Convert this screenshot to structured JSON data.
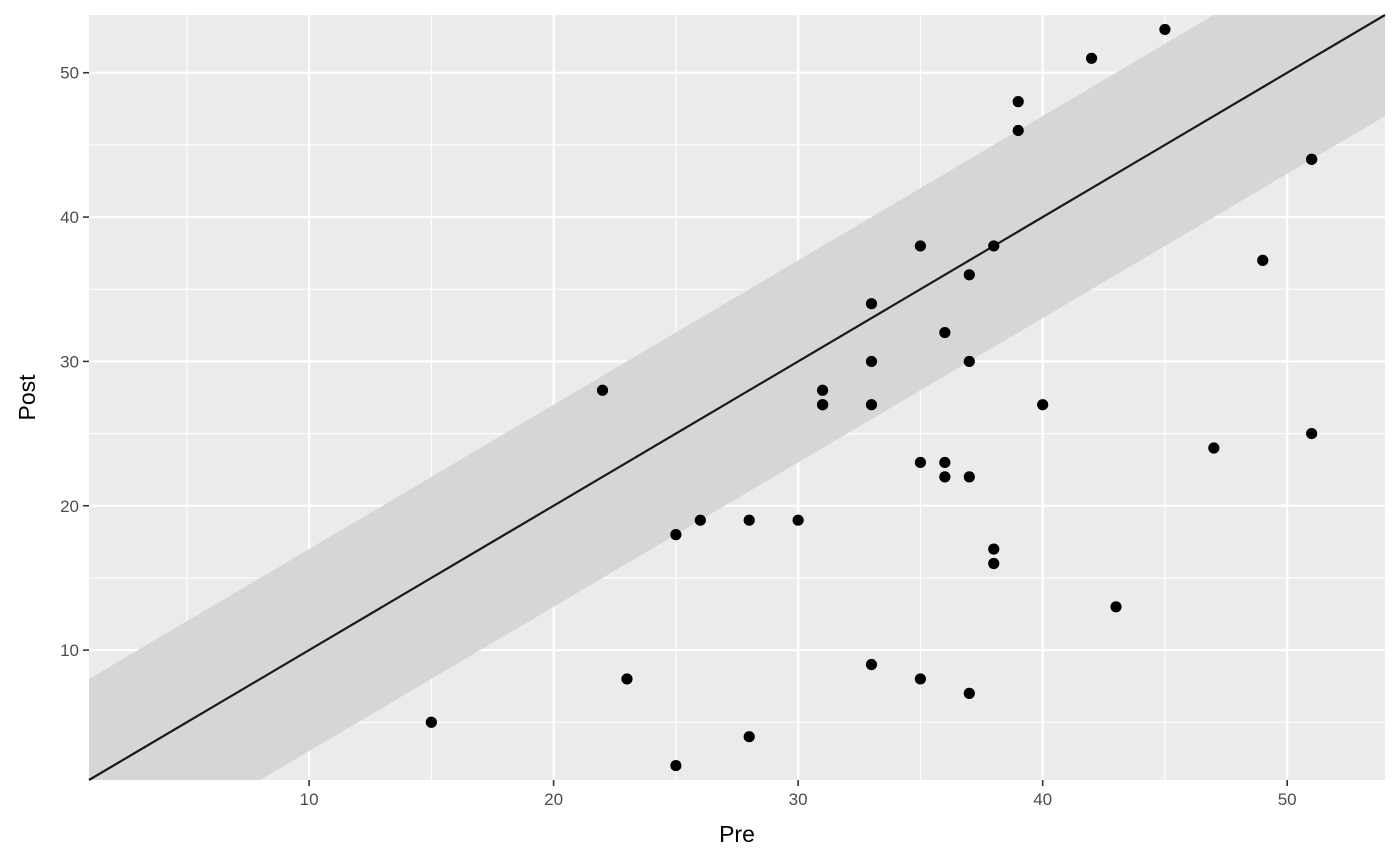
{
  "chart_data": {
    "type": "scatter",
    "title": "",
    "xlabel": "Pre",
    "ylabel": "Post",
    "xlim": [
      1,
      54
    ],
    "ylim": [
      1,
      54
    ],
    "x_ticks": [
      10,
      20,
      30,
      40,
      50
    ],
    "y_ticks": [
      10,
      20,
      30,
      40,
      50
    ],
    "x_minor_ticks": [
      5,
      15,
      25,
      35,
      45
    ],
    "y_minor_ticks": [
      5,
      15,
      25,
      35,
      45
    ],
    "grid": true,
    "reference_line": {
      "type": "identity",
      "slope": 1,
      "intercept": 0
    },
    "band": {
      "lower_offset": -7,
      "upper_offset": 7
    },
    "points": [
      {
        "x": 15,
        "y": 5
      },
      {
        "x": 22,
        "y": 28
      },
      {
        "x": 23,
        "y": 8
      },
      {
        "x": 25,
        "y": 18
      },
      {
        "x": 25,
        "y": 2
      },
      {
        "x": 26,
        "y": 19
      },
      {
        "x": 28,
        "y": 19
      },
      {
        "x": 28,
        "y": 4
      },
      {
        "x": 30,
        "y": 19
      },
      {
        "x": 31,
        "y": 28
      },
      {
        "x": 31,
        "y": 27
      },
      {
        "x": 31,
        "y": 27
      },
      {
        "x": 33,
        "y": 34
      },
      {
        "x": 33,
        "y": 30
      },
      {
        "x": 33,
        "y": 27
      },
      {
        "x": 33,
        "y": 9
      },
      {
        "x": 35,
        "y": 38
      },
      {
        "x": 35,
        "y": 23
      },
      {
        "x": 35,
        "y": 8
      },
      {
        "x": 36,
        "y": 32
      },
      {
        "x": 36,
        "y": 23
      },
      {
        "x": 36,
        "y": 22
      },
      {
        "x": 37,
        "y": 36
      },
      {
        "x": 37,
        "y": 30
      },
      {
        "x": 37,
        "y": 22
      },
      {
        "x": 37,
        "y": 7
      },
      {
        "x": 38,
        "y": 38
      },
      {
        "x": 38,
        "y": 17
      },
      {
        "x": 38,
        "y": 16
      },
      {
        "x": 39,
        "y": 48
      },
      {
        "x": 39,
        "y": 46
      },
      {
        "x": 40,
        "y": 27
      },
      {
        "x": 42,
        "y": 51
      },
      {
        "x": 43,
        "y": 13
      },
      {
        "x": 45,
        "y": 53
      },
      {
        "x": 47,
        "y": 24
      },
      {
        "x": 49,
        "y": 37
      },
      {
        "x": 51,
        "y": 44
      },
      {
        "x": 51,
        "y": 44
      },
      {
        "x": 51,
        "y": 25
      }
    ],
    "colors": {
      "panel": "#ebebeb",
      "grid": "#ffffff",
      "band": "#d6d6d6",
      "line": "#1a1a1a",
      "point": "#000000"
    }
  }
}
